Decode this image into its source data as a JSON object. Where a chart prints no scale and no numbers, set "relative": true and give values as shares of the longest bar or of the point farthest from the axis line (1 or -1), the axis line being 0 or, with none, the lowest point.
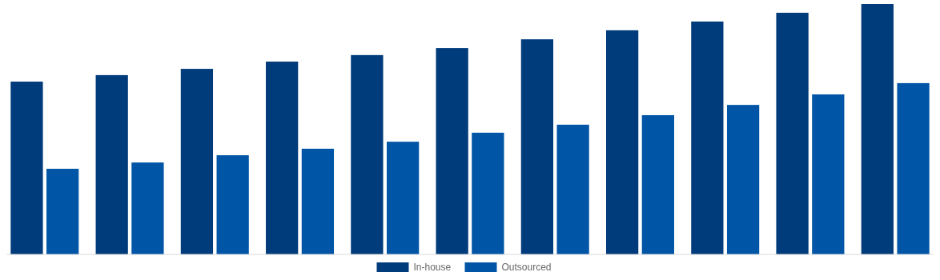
{
  "chart_data": {
    "type": "bar",
    "relative": true,
    "categories": [
      null,
      null,
      null,
      null,
      null,
      null,
      null,
      null,
      null,
      null,
      null
    ],
    "legend": "bottom",
    "series": [
      {
        "name": "In-house",
        "color": "#003b7b",
        "values": [
          0.69,
          0.716,
          0.741,
          0.77,
          0.796,
          0.824,
          0.859,
          0.895,
          0.93,
          0.965,
          1
        ]
      },
      {
        "name": "Outsourced",
        "color": "#0055a6",
        "values": [
          0.342,
          0.367,
          0.396,
          0.422,
          0.45,
          0.486,
          0.518,
          0.556,
          0.597,
          0.639,
          0.684
        ]
      }
    ]
  }
}
